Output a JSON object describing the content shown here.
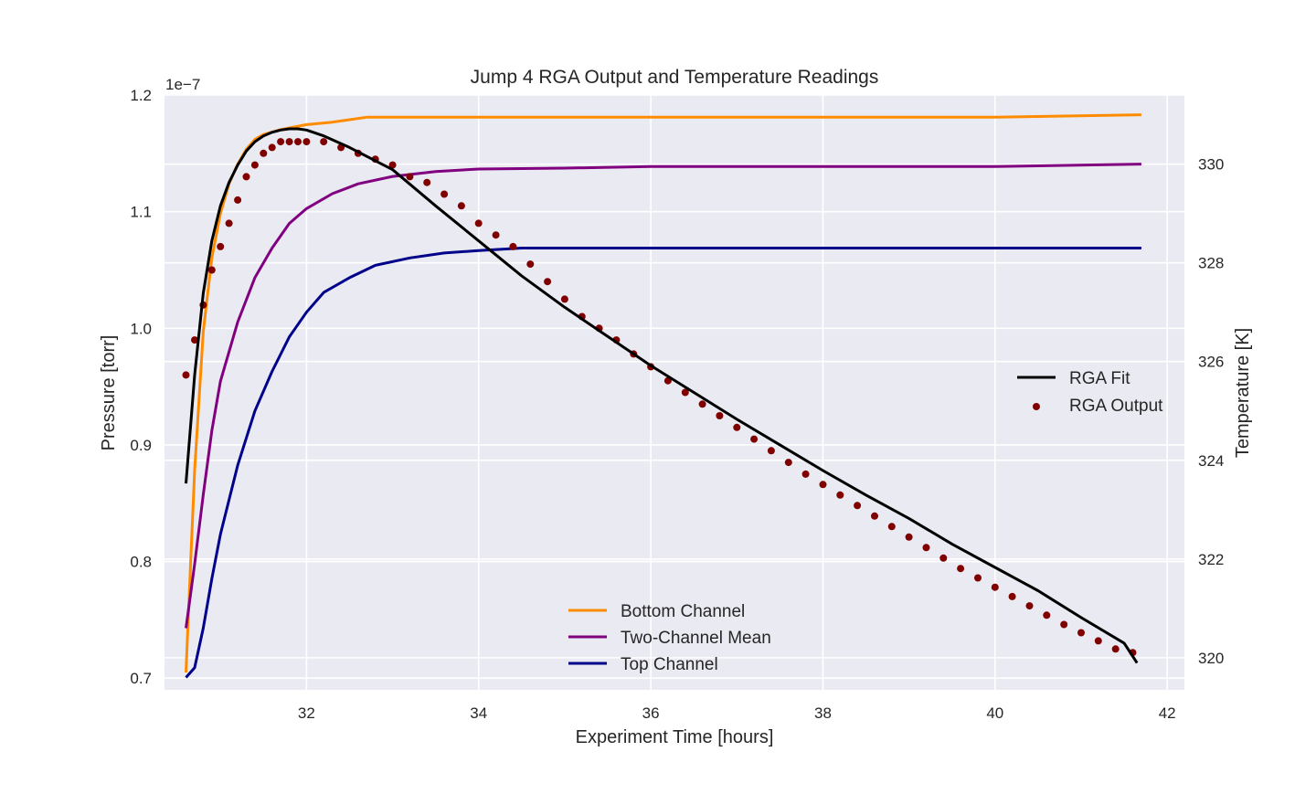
{
  "chart_data": {
    "type": "line",
    "title": "Jump 4 RGA Output and Temperature Readings",
    "xlabel": "Experiment Time [hours]",
    "ylabel": "Pressure [torr]",
    "y2label": "Temperature [K]",
    "left_axis_offset_label": "1e−7",
    "xlim": [
      30.35,
      42.2
    ],
    "ylim": [
      0.69,
      1.2
    ],
    "y2lim": [
      319.35,
      331.4
    ],
    "xticks": [
      32,
      34,
      36,
      38,
      40,
      42
    ],
    "yticks": [
      0.7,
      0.8,
      0.9,
      1.0,
      1.1,
      1.2
    ],
    "y2ticks": [
      320,
      322,
      324,
      326,
      328,
      330
    ],
    "grid": true,
    "legends": {
      "pressure": {
        "placement": "center-right",
        "entries": [
          "RGA Fit",
          "RGA Output"
        ]
      },
      "temperature": {
        "placement": "lower-center",
        "entries": [
          "Bottom Channel",
          "Two-Channel Mean",
          "Top Channel"
        ]
      }
    },
    "pressure_series": [
      {
        "name": "RGA Fit",
        "kind": "line",
        "color": "#000000",
        "x": [
          30.6,
          30.7,
          30.8,
          30.9,
          31.0,
          31.1,
          31.2,
          31.3,
          31.4,
          31.5,
          31.6,
          31.7,
          31.8,
          31.9,
          32.0,
          32.2,
          32.5,
          33.0,
          33.5,
          34.0,
          34.5,
          35.0,
          35.5,
          36.0,
          36.5,
          37.0,
          37.5,
          38.0,
          38.5,
          39.0,
          39.5,
          40.0,
          40.5,
          41.0,
          41.5,
          41.65
        ],
        "y": [
          0.867,
          0.96,
          1.03,
          1.075,
          1.105,
          1.125,
          1.14,
          1.152,
          1.16,
          1.165,
          1.168,
          1.17,
          1.171,
          1.171,
          1.17,
          1.165,
          1.155,
          1.136,
          1.105,
          1.075,
          1.045,
          1.018,
          0.993,
          0.968,
          0.945,
          0.922,
          0.9,
          0.878,
          0.857,
          0.837,
          0.815,
          0.795,
          0.775,
          0.752,
          0.73,
          0.713
        ]
      },
      {
        "name": "RGA Output",
        "kind": "scatter",
        "color": "#800000",
        "x": [
          30.6,
          30.7,
          30.8,
          30.9,
          31.0,
          31.1,
          31.2,
          31.3,
          31.4,
          31.5,
          31.6,
          31.7,
          31.8,
          31.9,
          32.0,
          32.2,
          32.4,
          32.6,
          32.8,
          33.0,
          33.2,
          33.4,
          33.6,
          33.8,
          34.0,
          34.2,
          34.4,
          34.6,
          34.8,
          35.0,
          35.2,
          35.4,
          35.6,
          35.8,
          36.0,
          36.2,
          36.4,
          36.6,
          36.8,
          37.0,
          37.2,
          37.4,
          37.6,
          37.8,
          38.0,
          38.2,
          38.4,
          38.6,
          38.8,
          39.0,
          39.2,
          39.4,
          39.6,
          39.8,
          40.0,
          40.2,
          40.4,
          40.6,
          40.8,
          41.0,
          41.2,
          41.4,
          41.6
        ],
        "y": [
          0.96,
          0.99,
          1.02,
          1.05,
          1.07,
          1.09,
          1.11,
          1.13,
          1.14,
          1.15,
          1.155,
          1.16,
          1.16,
          1.16,
          1.16,
          1.16,
          1.155,
          1.15,
          1.145,
          1.14,
          1.13,
          1.125,
          1.115,
          1.105,
          1.09,
          1.08,
          1.07,
          1.055,
          1.04,
          1.025,
          1.01,
          1.0,
          0.99,
          0.978,
          0.967,
          0.955,
          0.945,
          0.935,
          0.925,
          0.915,
          0.905,
          0.895,
          0.885,
          0.875,
          0.866,
          0.857,
          0.848,
          0.839,
          0.83,
          0.821,
          0.812,
          0.803,
          0.794,
          0.786,
          0.778,
          0.77,
          0.762,
          0.754,
          0.746,
          0.739,
          0.732,
          0.725,
          0.722
        ]
      }
    ],
    "temperature_series": [
      {
        "name": "Bottom Channel",
        "color": "#ff8c00",
        "x": [
          30.6,
          30.65,
          30.7,
          30.8,
          30.9,
          31.0,
          31.1,
          31.2,
          31.3,
          31.4,
          31.5,
          31.7,
          32.0,
          32.3,
          32.7,
          33.5,
          34.5,
          36.0,
          38.0,
          40.0,
          41.7
        ],
        "y": [
          319.7,
          321.8,
          323.8,
          326.6,
          328.1,
          329.0,
          329.6,
          330.0,
          330.3,
          330.5,
          330.6,
          330.7,
          330.8,
          330.85,
          330.95,
          330.95,
          330.95,
          330.95,
          330.95,
          330.95,
          331.0
        ]
      },
      {
        "name": "Two-Channel Mean",
        "color": "#800080",
        "x": [
          30.6,
          30.7,
          30.8,
          30.9,
          31.0,
          31.2,
          31.4,
          31.6,
          31.8,
          32.0,
          32.3,
          32.6,
          33.0,
          33.5,
          34.0,
          35.0,
          36.0,
          38.0,
          40.0,
          41.7
        ],
        "y": [
          320.6,
          321.9,
          323.3,
          324.6,
          325.6,
          326.8,
          327.7,
          328.3,
          328.8,
          329.1,
          329.4,
          329.6,
          329.75,
          329.85,
          329.9,
          329.92,
          329.95,
          329.95,
          329.95,
          330.0
        ]
      },
      {
        "name": "Top Channel",
        "color": "#00008b",
        "x": [
          30.6,
          30.7,
          30.8,
          30.9,
          31.0,
          31.2,
          31.4,
          31.6,
          31.8,
          32.0,
          32.2,
          32.5,
          32.8,
          33.2,
          33.6,
          34.0,
          34.5,
          35.0,
          36.0,
          38.0,
          40.0,
          41.7
        ],
        "y": [
          319.6,
          319.8,
          320.6,
          321.6,
          322.5,
          323.9,
          325.0,
          325.8,
          326.5,
          327.0,
          327.4,
          327.7,
          327.95,
          328.1,
          328.2,
          328.25,
          328.3,
          328.3,
          328.3,
          328.3,
          328.3,
          328.3
        ]
      }
    ]
  }
}
